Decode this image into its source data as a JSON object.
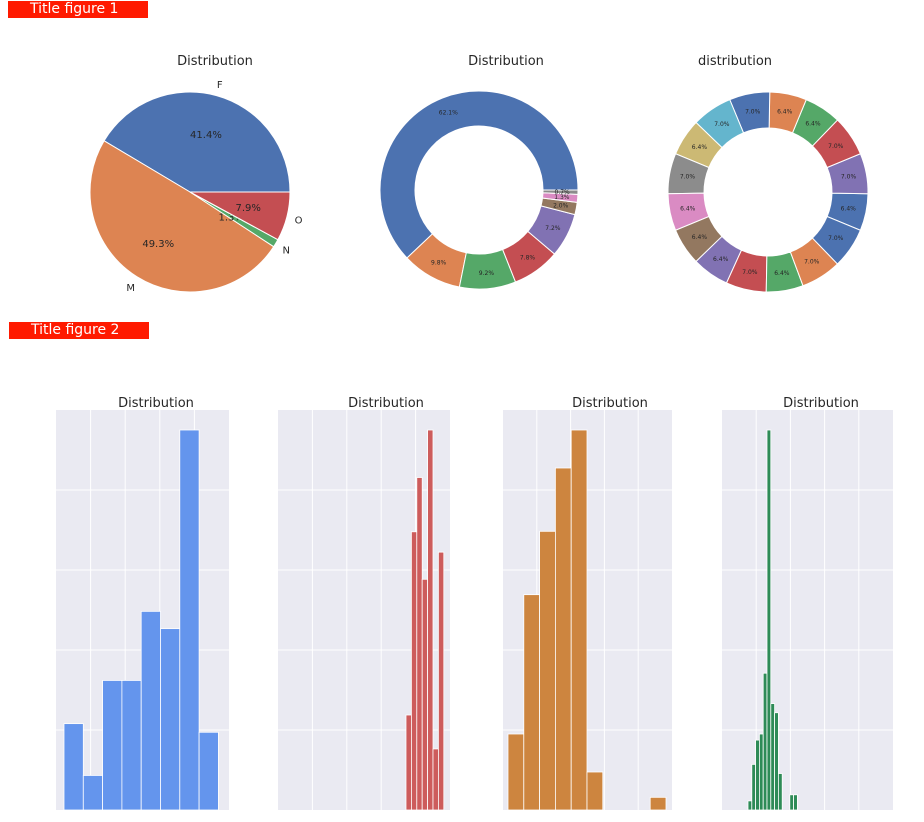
{
  "banners": [
    "Title figure 1",
    "Title figure 2"
  ],
  "colors": {
    "background": "#ffffff",
    "banner": "#ff1a00",
    "hist_panel": "#eaeaf2",
    "hist_grid": "#ffffff",
    "palette": [
      "#4c72b0",
      "#dd8452",
      "#55a868",
      "#c44e52",
      "#8172b3",
      "#937860",
      "#da8bc3",
      "#8c8c8c",
      "#ccb974",
      "#64b5cd"
    ]
  },
  "chart_data": [
    {
      "type": "pie",
      "title": "Distribution",
      "labels": [
        "F",
        "M",
        "N",
        "O"
      ],
      "values": [
        41.4,
        49.3,
        1.3,
        7.9
      ],
      "pct_labels": [
        "41.4%",
        "49.3%",
        "1.3%",
        "7.9%"
      ],
      "colors": [
        "#4c72b0",
        "#dd8452",
        "#55a868",
        "#c44e52"
      ]
    },
    {
      "type": "pie",
      "variant": "donut",
      "title": "Distribution",
      "values": [
        62.1,
        9.8,
        9.2,
        7.8,
        7.2,
        2.0,
        1.3,
        0.7
      ],
      "pct_labels": [
        "62.1%",
        "9.8%",
        "9.2%",
        "7.8%",
        "7.2%",
        "2.0%",
        "1.3%",
        "0.7%"
      ],
      "colors": [
        "#4c72b0",
        "#dd8452",
        "#55a868",
        "#c44e52",
        "#8172b3",
        "#937860",
        "#da8bc3",
        "#8c8c8c"
      ]
    },
    {
      "type": "pie",
      "variant": "donut",
      "title": "distribution",
      "values": [
        6.4,
        7.0,
        7.0,
        6.4,
        6.4,
        7.0,
        7.0,
        6.4,
        7.0,
        6.4,
        6.4,
        6.4,
        7.0,
        6.4,
        7.0,
        7.0
      ],
      "pct_labels": [
        "6.4%",
        "7.0%",
        "7.0%",
        "6.4%",
        "6.4%",
        "7.0%",
        "7.0%",
        "6.4%",
        "7.0%",
        "6.4%",
        "6.4%",
        "6.4%",
        "7.0%",
        "6.4%",
        "7.0%",
        "7.0%"
      ],
      "colors": [
        "#4c72b0",
        "#8172b3",
        "#c44e52",
        "#55a868",
        "#dd8452",
        "#4c72b0",
        "#64b5cd",
        "#ccb974",
        "#8c8c8c",
        "#da8bc3",
        "#937860",
        "#8172b3",
        "#c44e52",
        "#55a868",
        "#dd8452",
        "#4c72b0"
      ]
    },
    {
      "type": "bar",
      "variant": "histogram",
      "title": "Distribution",
      "color": "#6495ed",
      "counts": [
        20,
        8,
        30,
        30,
        46,
        42,
        88,
        18
      ]
    },
    {
      "type": "bar",
      "variant": "histogram",
      "title": "Distribution",
      "color": "#cd5c5c",
      "counts": [
        14,
        41,
        49,
        34,
        56,
        9,
        38
      ]
    },
    {
      "type": "bar",
      "variant": "histogram",
      "title": "Distribution",
      "color": "#cd853f",
      "counts": [
        6,
        17,
        22,
        27,
        30,
        3,
        0,
        0,
        0,
        1
      ]
    },
    {
      "type": "bar",
      "variant": "histogram",
      "title": "Distribution",
      "color": "#2e8b57",
      "counts": [
        3,
        15,
        23,
        25,
        45,
        125,
        35,
        32,
        12,
        0,
        0,
        5,
        5
      ]
    }
  ]
}
